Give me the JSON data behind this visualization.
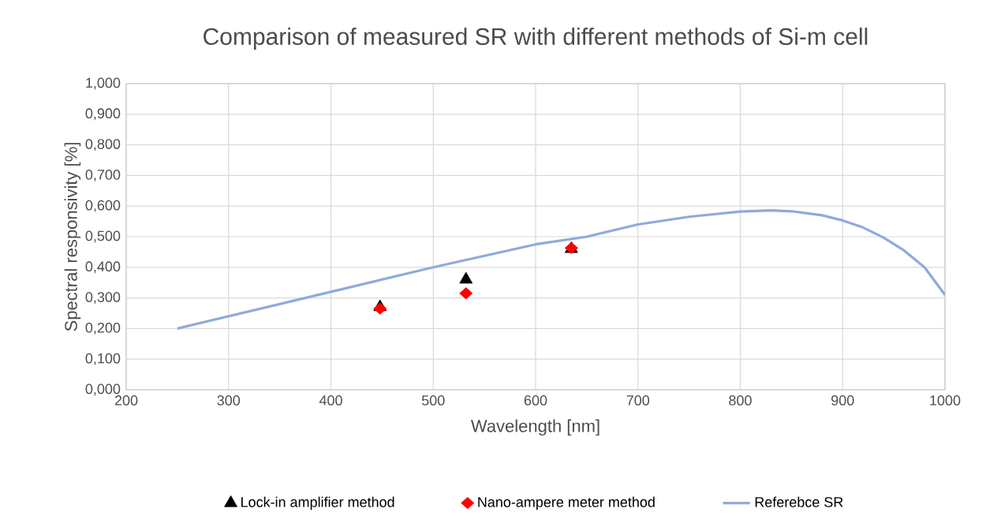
{
  "chart_data": {
    "type": "scatter",
    "title": "Comparison of measured SR with different methods of Si-m cell",
    "xlabel": "Wavelength [nm]",
    "ylabel": "Spectral responsivity [%]",
    "xlim": [
      200,
      1000
    ],
    "xticks": [
      200,
      300,
      400,
      500,
      600,
      700,
      800,
      900,
      1000
    ],
    "ylim": [
      0,
      1
    ],
    "yticks": [
      {
        "value": 0,
        "label": "0,000"
      },
      {
        "value": 0.1,
        "label": "0,100"
      },
      {
        "value": 0.2,
        "label": "0,200"
      },
      {
        "value": 0.3,
        "label": "0,300"
      },
      {
        "value": 0.4,
        "label": "0,400"
      },
      {
        "value": 0.5,
        "label": "0,500"
      },
      {
        "value": 0.6,
        "label": "0,600"
      },
      {
        "value": 0.7,
        "label": "0,700"
      },
      {
        "value": 0.8,
        "label": "0,800"
      },
      {
        "value": 0.9,
        "label": "0,900"
      },
      {
        "value": 1,
        "label": "1,000"
      }
    ],
    "grid": true,
    "legend": "bottom",
    "series": [
      {
        "name": "Lock-in amplifier method",
        "marker": "triangle",
        "color": "#000000",
        "x": [
          448,
          532,
          635
        ],
        "values": [
          0.27,
          0.36,
          0.46
        ]
      },
      {
        "name": "Nano-ampere meter method",
        "marker": "diamond",
        "color": "#ff0000",
        "x": [
          448,
          532,
          635
        ],
        "values": [
          0.265,
          0.315,
          0.463
        ]
      },
      {
        "name": "Referebce SR",
        "type": "line",
        "marker": "none",
        "line_style": "solid",
        "color": "#8faadc",
        "x": [
          250,
          300,
          400,
          500,
          600,
          650,
          700,
          750,
          800,
          830,
          850,
          880,
          900,
          920,
          940,
          960,
          980,
          1000
        ],
        "values": [
          0.2,
          0.24,
          0.32,
          0.4,
          0.475,
          0.5,
          0.54,
          0.565,
          0.582,
          0.586,
          0.583,
          0.57,
          0.553,
          0.53,
          0.497,
          0.455,
          0.4,
          0.31
        ]
      }
    ]
  }
}
